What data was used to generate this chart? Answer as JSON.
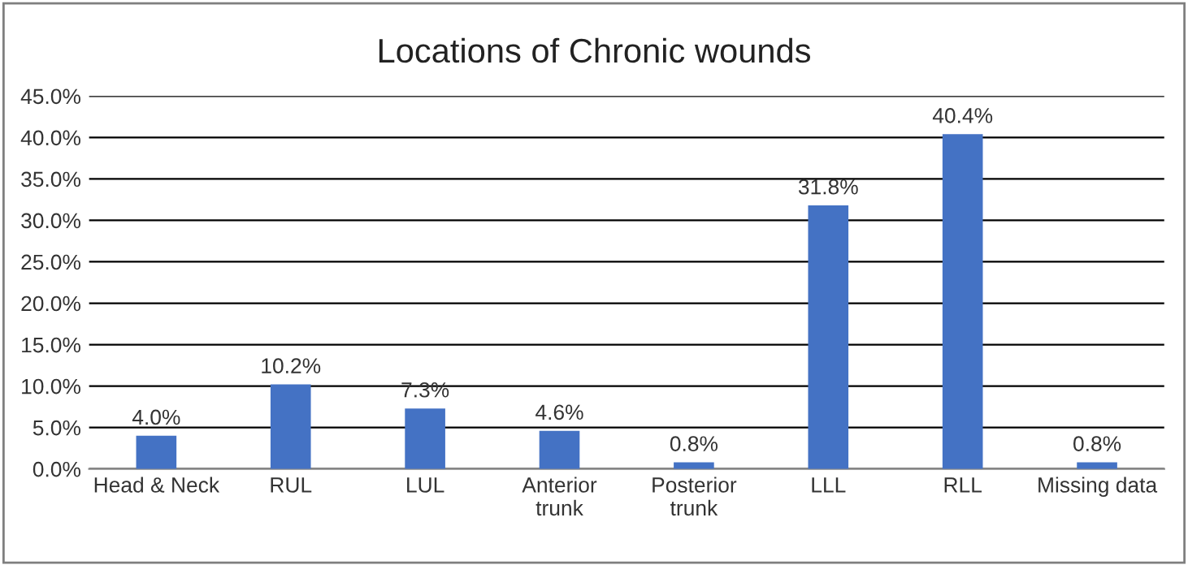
{
  "chart_data": {
    "type": "bar",
    "title": "Locations of Chronic wounds",
    "categories": [
      "Head & Neck",
      "RUL",
      "LUL",
      "Anterior\ntrunk",
      "Posterior\ntrunk",
      "LLL",
      "RLL",
      "Missing data"
    ],
    "values": [
      4.0,
      10.2,
      7.3,
      4.6,
      0.8,
      31.8,
      40.4,
      0.8
    ],
    "value_labels": [
      "4.0%",
      "10.2%",
      "7.3%",
      "4.6%",
      "0.8%",
      "31.8%",
      "40.4%",
      "0.8%"
    ],
    "color": "#4472c4",
    "ylim": [
      0,
      45
    ],
    "yticks": [
      {
        "value": 0,
        "label": "0.0%"
      },
      {
        "value": 5,
        "label": "5.0%"
      },
      {
        "value": 10,
        "label": "10.0%"
      },
      {
        "value": 15,
        "label": "15.0%"
      },
      {
        "value": 20,
        "label": "20.0%"
      },
      {
        "value": 25,
        "label": "25.0%"
      },
      {
        "value": 30,
        "label": "30.0%"
      },
      {
        "value": 35,
        "label": "35.0%"
      },
      {
        "value": 40,
        "label": "40.0%"
      },
      {
        "value": 45,
        "label": "45.0%"
      }
    ],
    "grid": "y"
  }
}
